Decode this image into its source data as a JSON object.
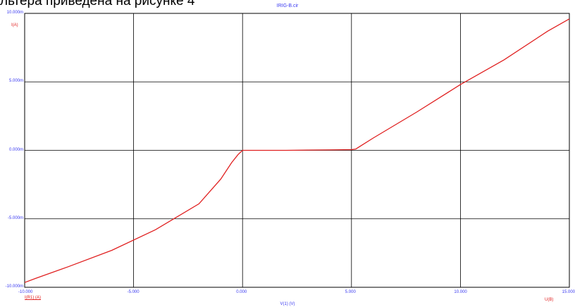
{
  "caption": "льтера приведена на рисунке 4",
  "chart_data": {
    "type": "line",
    "title": "IRIG-B.cir",
    "xlabel": "V(1) (V)",
    "ylabel": "I(A)",
    "xlim": [
      -10,
      15
    ],
    "ylim": [
      -0.01,
      0.01
    ],
    "x_ticks": [
      "-10.000",
      "-5.000",
      "0.000",
      "5.000",
      "10.000",
      "15.000"
    ],
    "y_ticks": [
      "10.000m",
      "5.000m",
      "0.000m",
      "-5.000m",
      "-10.000m"
    ],
    "grid": true,
    "trace_label": "I(R1) (A)",
    "right_axis_label": "U(B)",
    "line_color": "#e02020",
    "axis_text_color": "#3a3af0",
    "series": [
      {
        "x": [
          -10,
          -9.5,
          -8,
          -6,
          -4,
          -2,
          -1,
          -0.5,
          -0.2,
          0,
          1,
          2,
          3,
          4,
          5,
          5.2,
          5.5,
          6,
          8,
          10,
          12,
          14,
          15
        ],
        "y": [
          -0.00965,
          -0.00935,
          -0.0085,
          -0.0073,
          -0.0058,
          -0.0039,
          -0.0021,
          -0.0009,
          -0.0003,
          0,
          0,
          0,
          2e-05,
          3e-05,
          5e-05,
          0.0001,
          0.0004,
          0.0009,
          0.0028,
          0.0048,
          0.0066,
          0.0087,
          0.0096
        ]
      }
    ]
  }
}
